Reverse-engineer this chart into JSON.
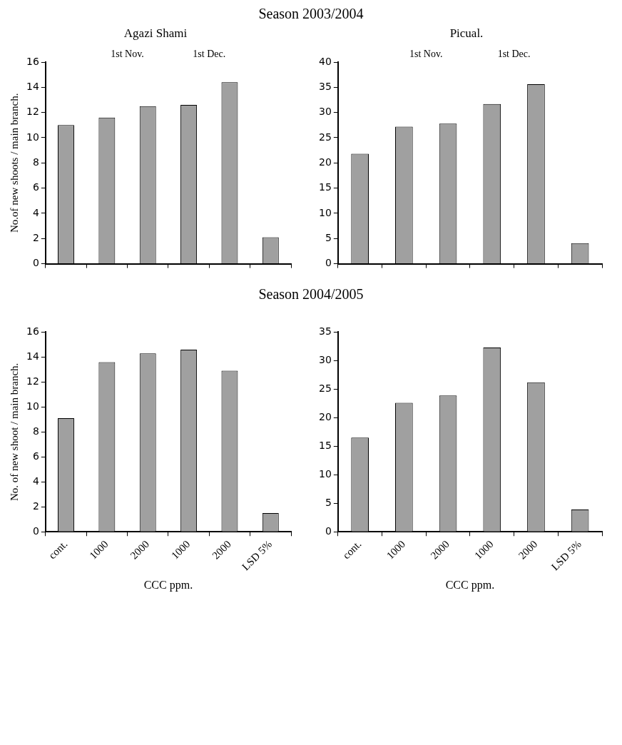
{
  "chart_data": [
    {
      "type": "bar",
      "title": "Season 2003/2004",
      "subtitle": "Agazi Shami",
      "ylabel": "No.of new shoots / main branch.",
      "categories": [
        null,
        null,
        null,
        null,
        null,
        null
      ],
      "values": [
        11.0,
        11.6,
        12.5,
        12.6,
        14.4,
        2.1
      ],
      "color": "#a0a0a0",
      "ylim": [
        0,
        16
      ],
      "yticks": [
        0,
        2,
        4,
        6,
        8,
        10,
        12,
        14,
        16
      ],
      "grid": false,
      "tick_labels": "y",
      "annotations": [
        "1st Nov.",
        "1st Dec."
      ]
    },
    {
      "type": "bar",
      "subtitle": "Picual.",
      "categories": [
        null,
        null,
        null,
        null,
        null,
        null
      ],
      "values": [
        21.8,
        27.2,
        27.8,
        31.7,
        35.6,
        4.1
      ],
      "color": "#a0a0a0",
      "ylim": [
        0,
        40
      ],
      "yticks": [
        0,
        5,
        10,
        15,
        20,
        25,
        30,
        35,
        40
      ],
      "grid": false,
      "tick_labels": "y",
      "annotations": [
        "1st Nov.",
        "1st Dec."
      ]
    },
    {
      "type": "bar",
      "title": "Season 2004/2005",
      "xlabel": "CCC ppm.",
      "ylabel": "No. of new shoot / main branch.",
      "categories": [
        "cont.",
        "1000",
        "2000",
        "1000",
        "2000",
        "LSD 5%"
      ],
      "values": [
        9.1,
        13.6,
        14.3,
        14.6,
        12.9,
        1.5
      ],
      "color": "#a0a0a0",
      "ylim": [
        0,
        16
      ],
      "yticks": [
        0,
        2,
        4,
        6,
        8,
        10,
        12,
        14,
        16
      ],
      "grid": false
    },
    {
      "type": "bar",
      "xlabel": "CCC ppm.",
      "categories": [
        "cont.",
        "1000",
        "2000",
        "1000",
        "2000",
        "LSD 5%"
      ],
      "values": [
        16.5,
        22.6,
        23.9,
        32.3,
        26.2,
        3.9
      ],
      "color": "#a0a0a0",
      "ylim": [
        0,
        35
      ],
      "yticks": [
        0,
        5,
        10,
        15,
        20,
        25,
        30,
        35
      ],
      "grid": false
    }
  ]
}
